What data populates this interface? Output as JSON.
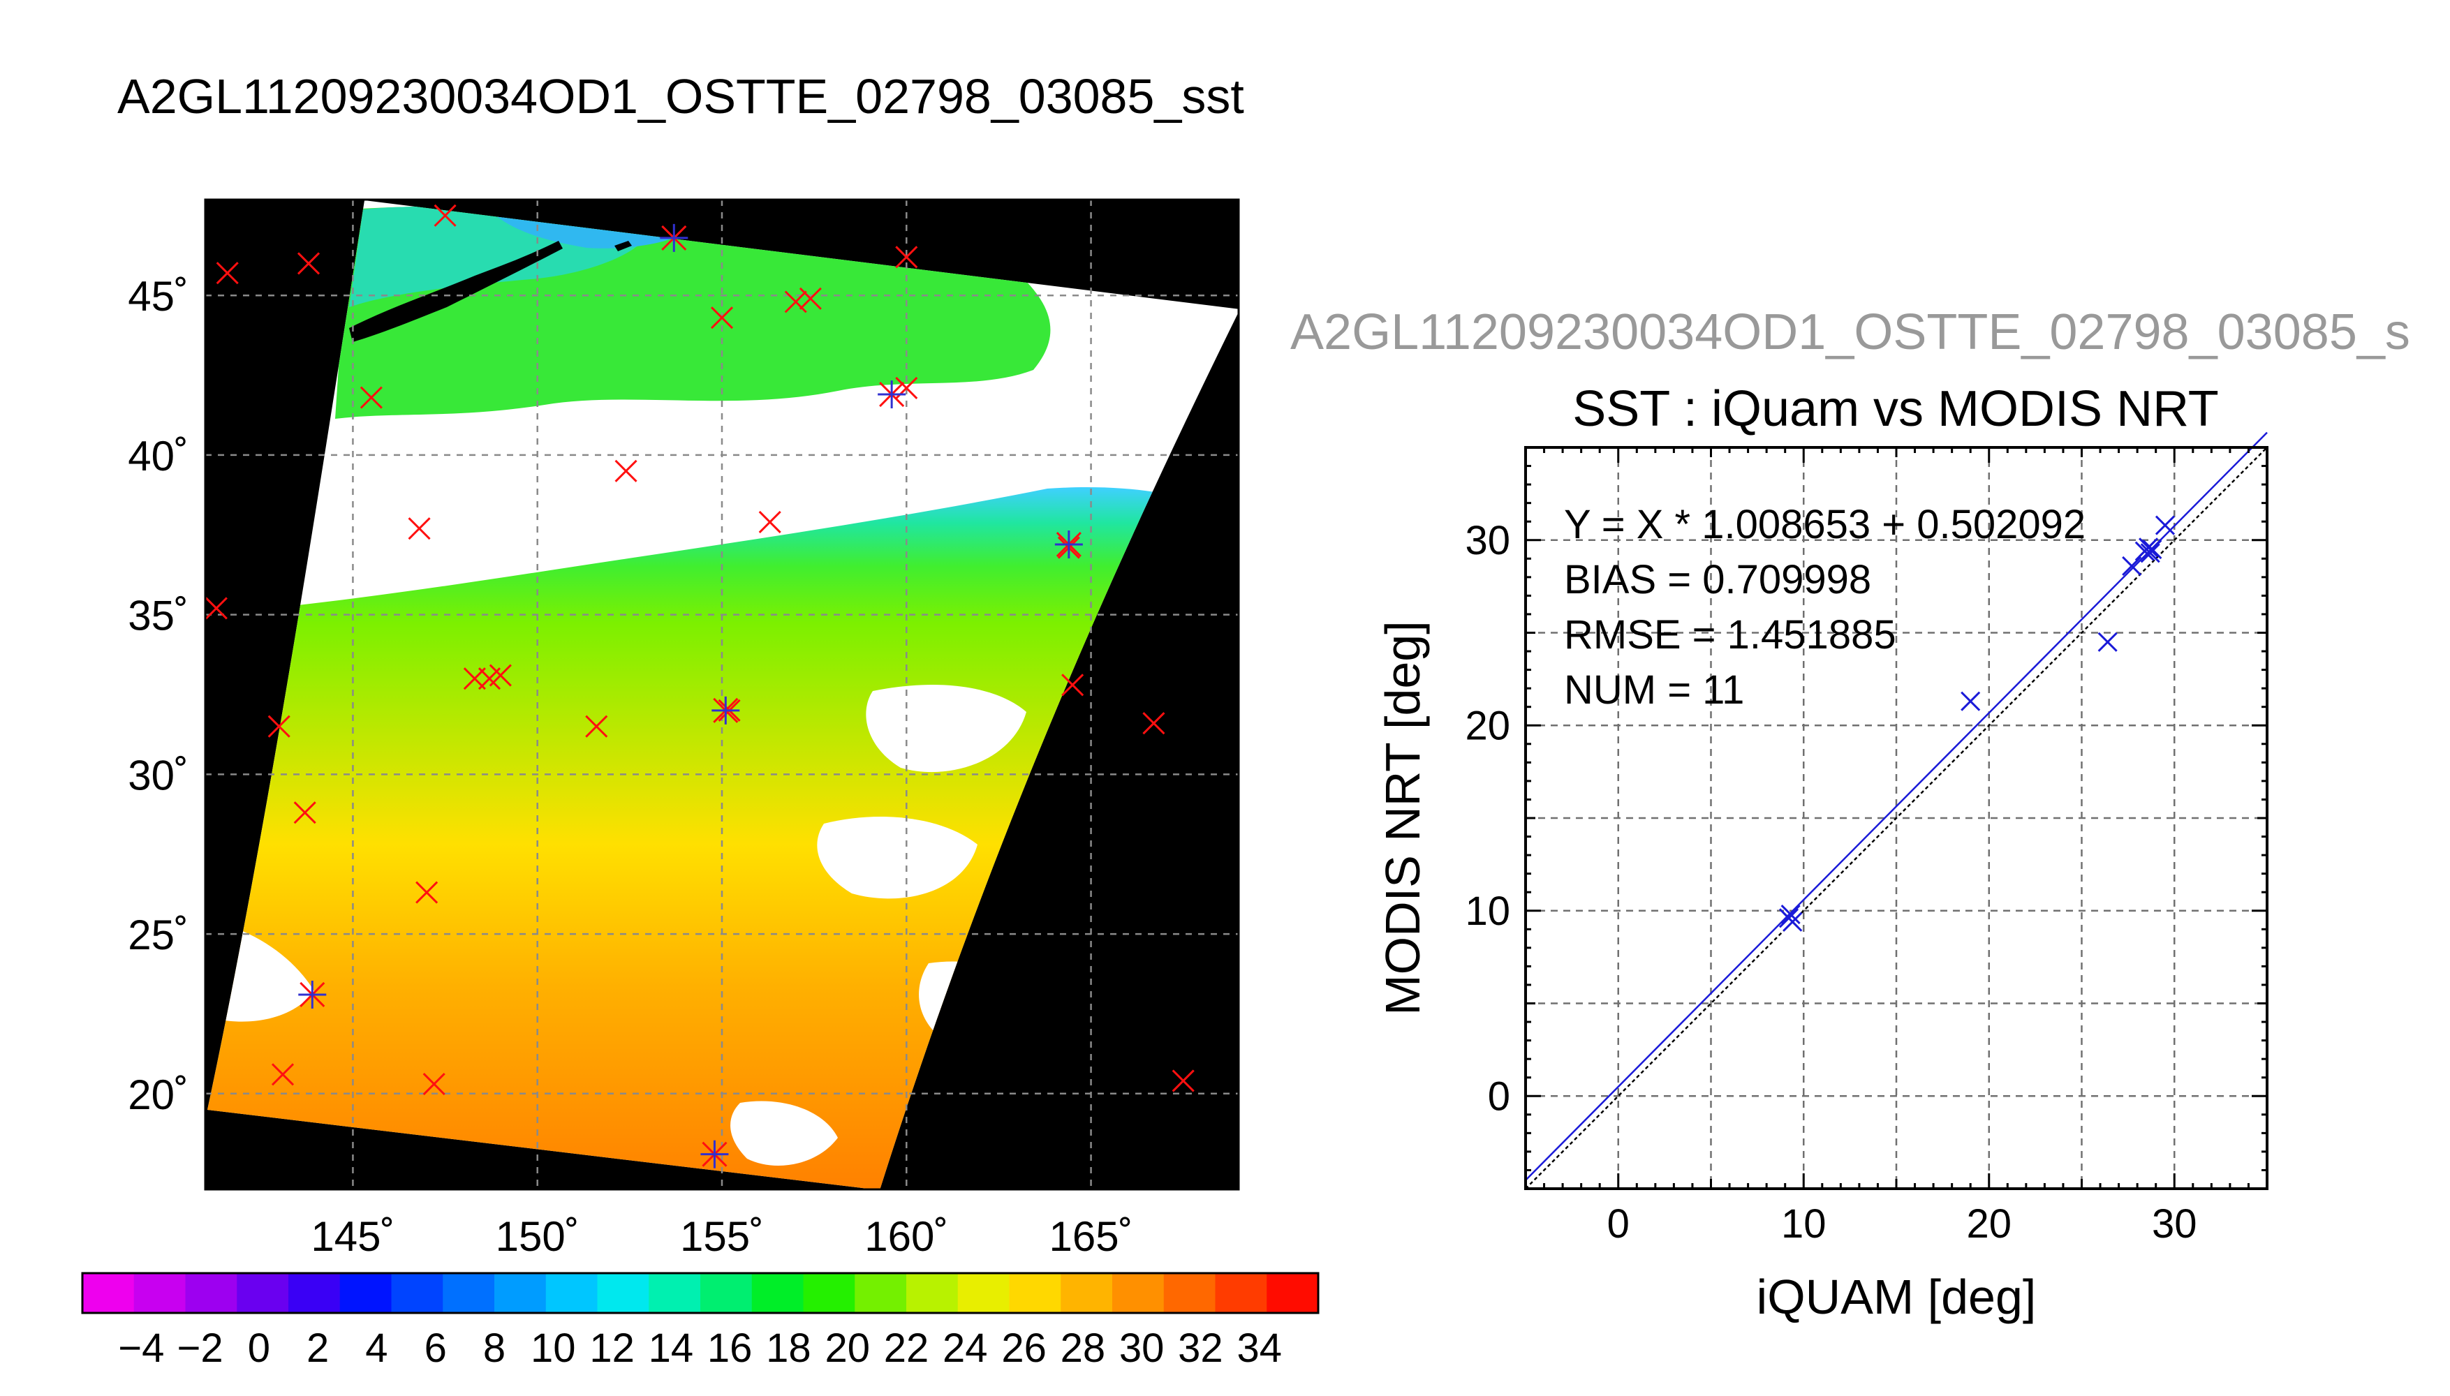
{
  "main_title": "A2GL11209230034OD1_OSTTE_02798_03085_sst",
  "secondary_title": "A2GL11209230034OD1_OSTTE_02798_03085_s",
  "map": {
    "lat_ticks": [
      {
        "value": 45,
        "label": "45˚"
      },
      {
        "value": 40,
        "label": "40˚"
      },
      {
        "value": 35,
        "label": "35˚"
      },
      {
        "value": 30,
        "label": "30˚"
      },
      {
        "value": 25,
        "label": "25˚"
      },
      {
        "value": 20,
        "label": "20˚"
      }
    ],
    "lon_ticks": [
      {
        "value": 145,
        "label": "145˚"
      },
      {
        "value": 150,
        "label": "150˚"
      },
      {
        "value": 155,
        "label": "155˚"
      },
      {
        "value": 160,
        "label": "160˚"
      },
      {
        "value": 165,
        "label": "165˚"
      }
    ],
    "lon_range": [
      141,
      169
    ],
    "lat_range": [
      17,
      48
    ],
    "red_markers": [
      [
        141.6,
        45.7
      ],
      [
        143.8,
        46.0
      ],
      [
        147.5,
        47.5
      ],
      [
        155.0,
        44.3
      ],
      [
        157.0,
        44.8
      ],
      [
        157.4,
        44.9
      ],
      [
        160.0,
        46.2
      ],
      [
        145.5,
        41.8
      ],
      [
        160.0,
        42.1
      ],
      [
        152.4,
        39.5
      ],
      [
        146.8,
        37.7
      ],
      [
        156.3,
        37.9
      ],
      [
        164.4,
        37.1
      ],
      [
        141.3,
        35.2
      ],
      [
        148.3,
        33.0
      ],
      [
        148.7,
        33.0
      ],
      [
        149.0,
        33.1
      ],
      [
        151.6,
        31.5
      ],
      [
        155.2,
        32.0
      ],
      [
        143.0,
        31.5
      ],
      [
        164.5,
        32.8
      ],
      [
        166.7,
        31.6
      ],
      [
        143.7,
        28.8
      ],
      [
        147.0,
        26.3
      ],
      [
        143.1,
        20.6
      ],
      [
        147.2,
        20.3
      ],
      [
        167.5,
        20.4
      ]
    ],
    "blue_markers": [
      [
        153.7,
        46.8
      ],
      [
        159.6,
        41.9
      ],
      [
        164.4,
        37.2
      ],
      [
        155.1,
        32.0
      ],
      [
        143.9,
        23.1
      ],
      [
        154.8,
        18.1
      ]
    ]
  },
  "colorbar": {
    "labels": [
      "−4",
      "−2",
      "0",
      "2",
      "4",
      "6",
      "8",
      "10",
      "12",
      "14",
      "16",
      "18",
      "20",
      "22",
      "24",
      "26",
      "28",
      "30",
      "32",
      "34"
    ],
    "colors": [
      "#ee00ee",
      "#c800f0",
      "#9d00f0",
      "#6a00f0",
      "#3a00f5",
      "#0014ff",
      "#0044ff",
      "#0070ff",
      "#009cff",
      "#00c6ff",
      "#00e8ee",
      "#00f0b0",
      "#00ee70",
      "#00ee28",
      "#24f000",
      "#74f000",
      "#b8f200",
      "#e8ee00",
      "#ffd800",
      "#ffb400",
      "#ff9000",
      "#ff6800",
      "#ff3c00",
      "#ff0c00"
    ]
  },
  "chart_data": {
    "type": "scatter",
    "title": "SST : iQuam vs MODIS NRT",
    "xlabel": "iQUAM [deg]",
    "ylabel": "MODIS NRT [deg]",
    "xlim": [
      -5,
      35
    ],
    "ylim": [
      -5,
      35
    ],
    "xticks": [
      0,
      10,
      20,
      30
    ],
    "yticks": [
      0,
      10,
      20,
      30
    ],
    "grid": true,
    "annotations": [
      "Y = X * 1.008653 + 0.502092",
      "BIAS = 0.709998",
      "RMSE = 1.451885",
      "NUM = 11"
    ],
    "fit": {
      "slope": 1.008653,
      "intercept": 0.502092
    },
    "points": [
      [
        9.3,
        9.8
      ],
      [
        9.4,
        9.4
      ],
      [
        19.0,
        21.3
      ],
      [
        26.4,
        24.5
      ],
      [
        27.7,
        28.6
      ],
      [
        28.4,
        29.4
      ],
      [
        28.6,
        29.6
      ],
      [
        28.8,
        29.5
      ],
      [
        28.7,
        29.3
      ],
      [
        29.5,
        30.8
      ],
      [
        9.2,
        9.6
      ]
    ]
  }
}
